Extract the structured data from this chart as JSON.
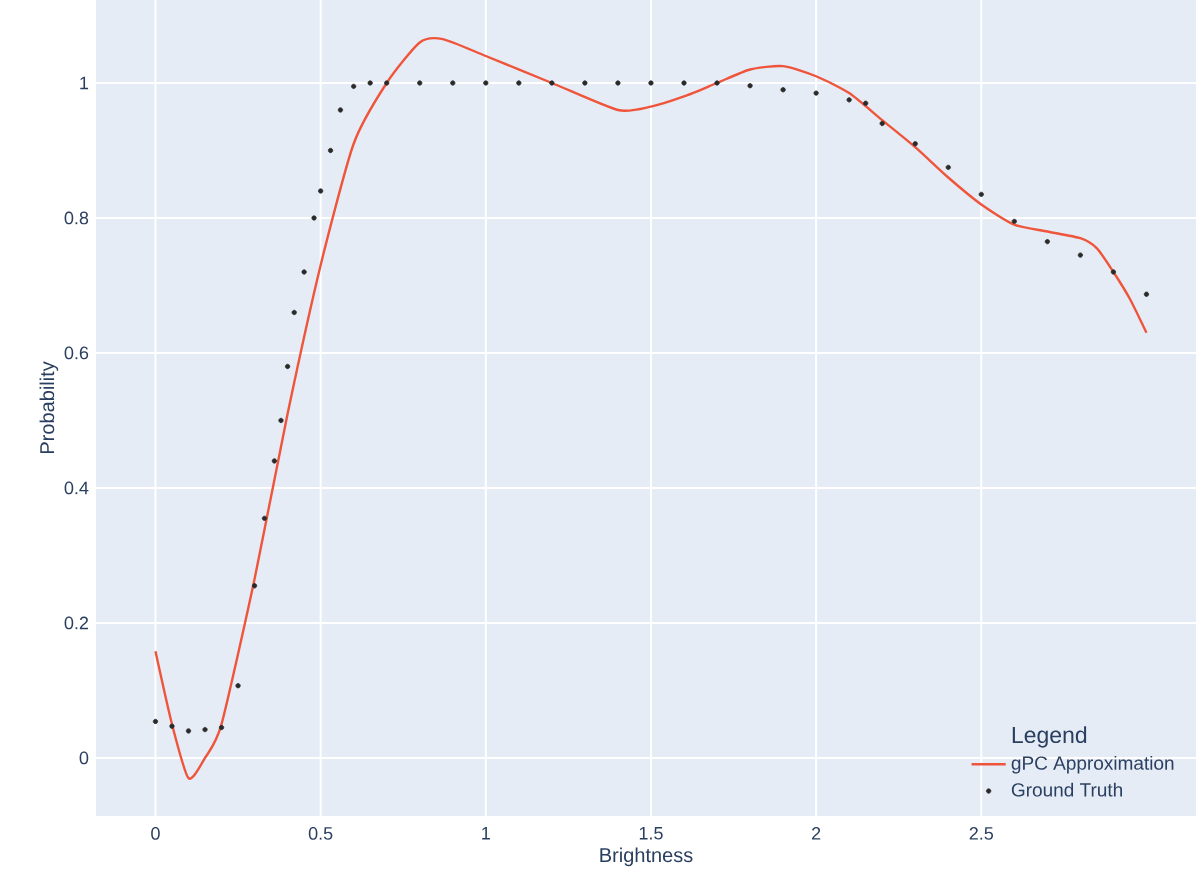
{
  "chart_data": {
    "type": "line",
    "xlabel": "Brightness",
    "ylabel": "Probability",
    "legend_title": "Legend",
    "legend": "bottom right",
    "grid": true,
    "xlim": [
      -0.18,
      3.15
    ],
    "ylim": [
      -0.086,
      1.123
    ],
    "xticks": [
      0,
      0.5,
      1,
      1.5,
      2,
      2.5
    ],
    "yticks": [
      0,
      0.2,
      0.4,
      0.6,
      0.8,
      1
    ],
    "series": [
      {
        "name": "gPC Approximation",
        "marker": "none",
        "color": "#ef553b",
        "x": [
          0,
          0.05,
          0.1,
          0.15,
          0.2,
          0.3,
          0.4,
          0.5,
          0.6,
          0.7,
          0.8,
          0.87,
          1.0,
          1.2,
          1.4,
          1.5,
          1.6,
          1.7,
          1.8,
          1.9,
          2.0,
          2.1,
          2.2,
          2.3,
          2.4,
          2.5,
          2.6,
          2.7,
          2.8,
          2.85,
          2.9,
          2.95,
          3.0
        ],
        "values": [
          0.158,
          0.05,
          -0.03,
          0.0,
          0.05,
          0.265,
          0.51,
          0.73,
          0.91,
          1.0,
          1.06,
          1.065,
          1.04,
          1.0,
          0.96,
          0.965,
          0.98,
          1.0,
          1.02,
          1.025,
          1.01,
          0.985,
          0.945,
          0.905,
          0.86,
          0.82,
          0.79,
          0.78,
          0.77,
          0.755,
          0.72,
          0.68,
          0.63
        ]
      },
      {
        "name": "Ground Truth",
        "type": "scatter",
        "marker": "circle",
        "color": "#2a2a2a",
        "x": [
          0,
          0.05,
          0.1,
          0.15,
          0.2,
          0.25,
          0.3,
          0.33,
          0.36,
          0.38,
          0.4,
          0.42,
          0.45,
          0.48,
          0.5,
          0.53,
          0.56,
          0.6,
          0.65,
          0.7,
          0.8,
          0.9,
          1.0,
          1.1,
          1.2,
          1.3,
          1.4,
          1.5,
          1.6,
          1.7,
          1.8,
          1.9,
          2.0,
          2.1,
          2.15,
          2.2,
          2.3,
          2.4,
          2.5,
          2.6,
          2.7,
          2.8,
          2.9,
          3.0
        ],
        "values": [
          0.054,
          0.047,
          0.04,
          0.042,
          0.045,
          0.107,
          0.255,
          0.355,
          0.44,
          0.5,
          0.58,
          0.66,
          0.72,
          0.8,
          0.84,
          0.9,
          0.96,
          0.995,
          1.0,
          1.0,
          1.0,
          1.0,
          1.0,
          1.0,
          1.0,
          1.0,
          1.0,
          1.0,
          1.0,
          1.0,
          0.996,
          0.99,
          0.985,
          0.975,
          0.97,
          0.94,
          0.91,
          0.875,
          0.835,
          0.795,
          0.765,
          0.745,
          0.72,
          0.687
        ]
      }
    ]
  }
}
